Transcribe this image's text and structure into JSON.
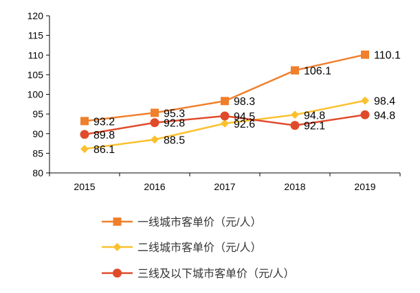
{
  "chart_data": {
    "type": "line",
    "title": "",
    "xlabel": "",
    "ylabel": "",
    "categories": [
      "2015",
      "2016",
      "2017",
      "2018",
      "2019"
    ],
    "ylim": [
      80,
      120
    ],
    "yticks": [
      80,
      85,
      90,
      95,
      100,
      105,
      110,
      115,
      120
    ],
    "grid": false,
    "legend_position": "bottom",
    "series": [
      {
        "name": "一线城市客单价（元/人）",
        "values": [
          93.2,
          95.3,
          98.3,
          106.1,
          110.1
        ],
        "labels": [
          "93.2",
          "95.3",
          "98.3",
          "106.1",
          "110.1"
        ],
        "color": "#f07f2c",
        "marker": "square"
      },
      {
        "name": "二线城市客单价（元/人）",
        "values": [
          86.1,
          88.5,
          92.6,
          94.8,
          98.4
        ],
        "labels": [
          "86.1",
          "88.5",
          "92.6",
          "94.8",
          "98.4"
        ],
        "color": "#fbc02d",
        "marker": "diamond"
      },
      {
        "name": "三线及以下城市客单价（元/人）",
        "values": [
          89.8,
          92.8,
          94.5,
          92.1,
          94.8
        ],
        "labels": [
          "89.8",
          "92.8",
          "94.5",
          "92.1",
          "94.8"
        ],
        "color": "#e04a2a",
        "marker": "circle"
      }
    ]
  }
}
